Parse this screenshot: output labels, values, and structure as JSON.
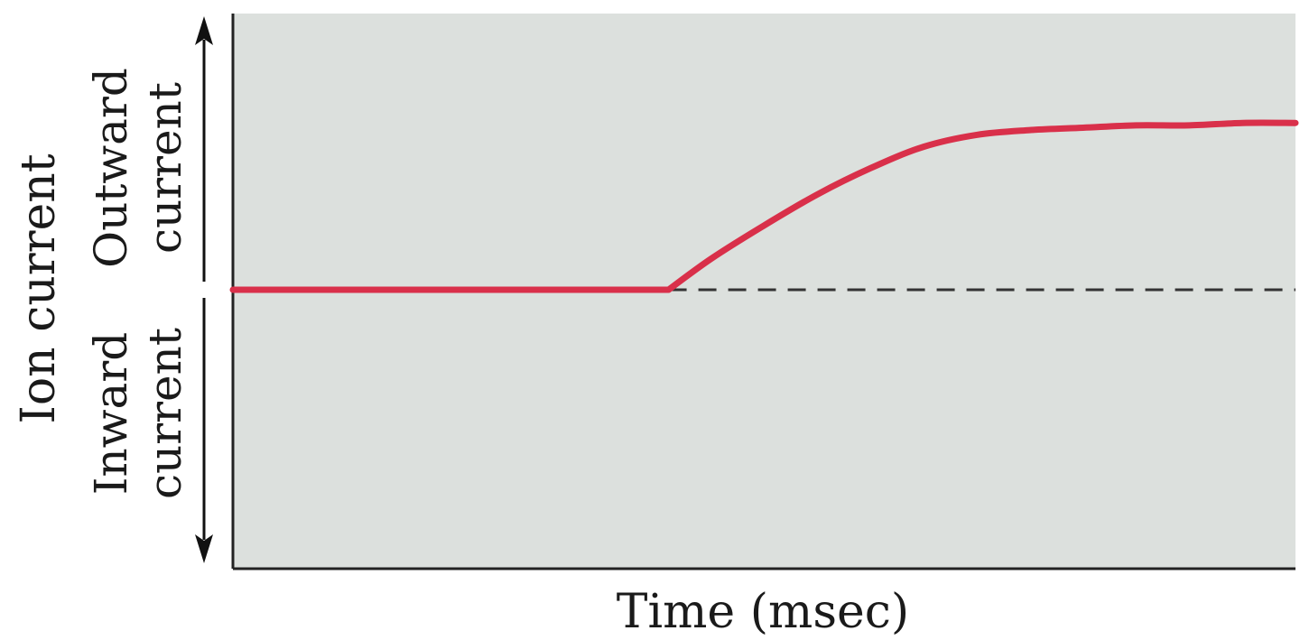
{
  "chart_data": {
    "type": "line",
    "title": "",
    "xlabel": "Time (msec)",
    "ylabel": "Ion current",
    "y_upper_label": [
      "Outward",
      "current"
    ],
    "y_lower_label": [
      "Inward",
      "current"
    ],
    "xlim": [
      0,
      100
    ],
    "ylim": [
      -1,
      1
    ],
    "grid": false,
    "colors": {
      "plot_background": "#dce0dd",
      "trace": "#d9304a",
      "baseline": "#333333",
      "axis": "#222222",
      "text": "#1a1a1a"
    },
    "series": [
      {
        "x": [
          0,
          41,
          45,
          50,
          55,
          60,
          65,
          70,
          75,
          80,
          85,
          90,
          95,
          100
        ],
        "y": [
          0,
          0,
          0.13,
          0.27,
          0.4,
          0.51,
          0.6,
          0.65,
          0.67,
          0.68,
          0.69,
          0.69,
          0.7,
          0.7
        ]
      }
    ],
    "baseline": {
      "y": 0,
      "style": "dashed",
      "from_x": 41,
      "to_x": 100
    }
  }
}
